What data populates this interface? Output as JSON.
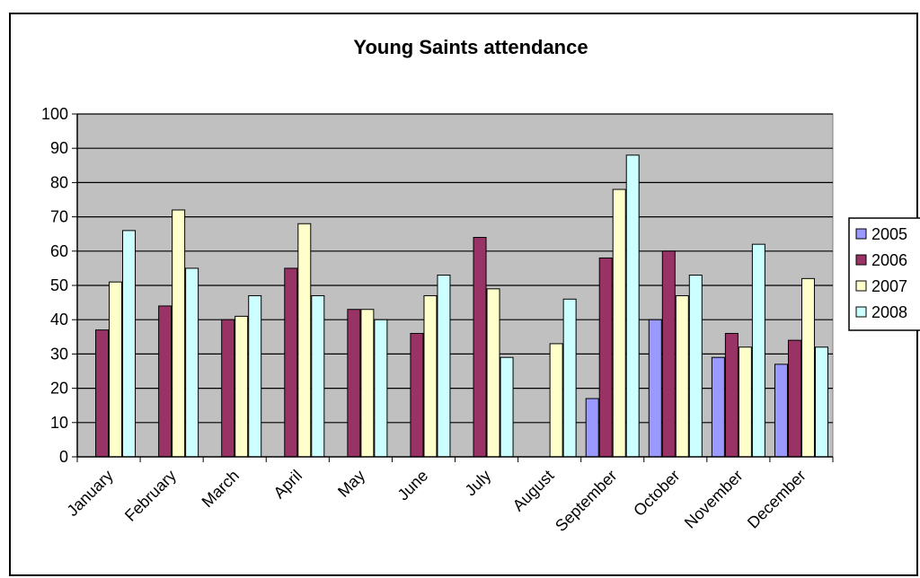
{
  "chart_data": {
    "type": "bar",
    "title": "Young Saints attendance",
    "xlabel": "",
    "ylabel": "",
    "ylim": [
      0,
      100
    ],
    "yticks": [
      "0",
      "10",
      "20",
      "30",
      "40",
      "50",
      "60",
      "70",
      "80",
      "90",
      "100"
    ],
    "grid": true,
    "legend_position": "right",
    "plot_background": "#c0c0c0",
    "categories": [
      "January",
      "February",
      "March",
      "April",
      "May",
      "June",
      "July",
      "August",
      "September",
      "October",
      "November",
      "December"
    ],
    "series": [
      {
        "name": "2005",
        "color": "#9999ff",
        "values": [
          null,
          null,
          null,
          null,
          null,
          null,
          null,
          null,
          17,
          40,
          29,
          27
        ]
      },
      {
        "name": "2006",
        "color": "#993366",
        "values": [
          37,
          44,
          40,
          55,
          43,
          36,
          64,
          null,
          58,
          60,
          36,
          34
        ]
      },
      {
        "name": "2007",
        "color": "#ffffcc",
        "values": [
          51,
          72,
          41,
          68,
          43,
          47,
          49,
          33,
          78,
          47,
          32,
          52
        ]
      },
      {
        "name": "2008",
        "color": "#ccffff",
        "values": [
          66,
          55,
          47,
          47,
          40,
          53,
          29,
          46,
          88,
          53,
          62,
          32
        ]
      }
    ]
  }
}
